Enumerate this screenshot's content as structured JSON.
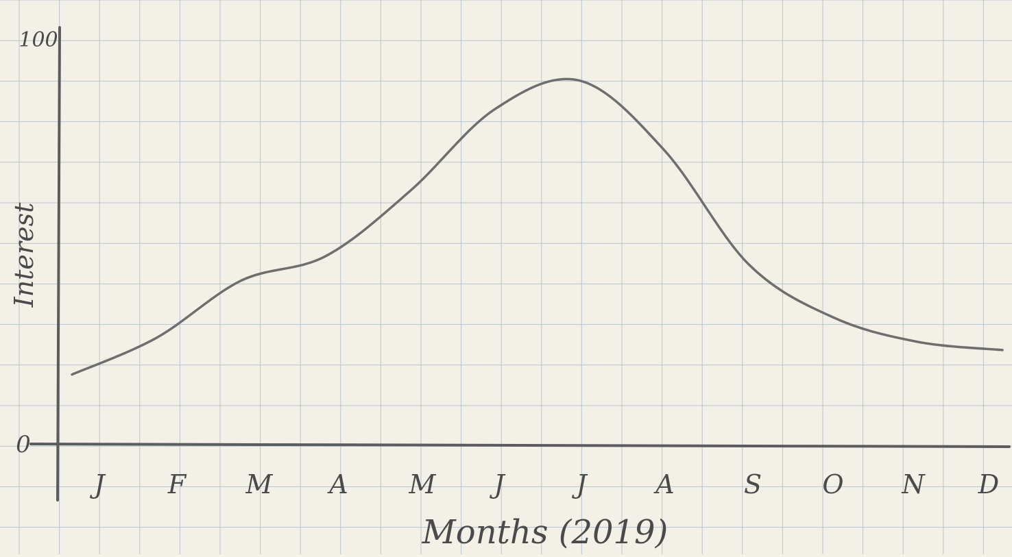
{
  "chart_data": {
    "type": "line",
    "title": "",
    "xlabel": "Months (2019)",
    "ylabel": "Interest",
    "ylim": [
      0,
      100
    ],
    "y_ticks": [
      "0",
      "100"
    ],
    "categories": [
      "J",
      "F",
      "M",
      "A",
      "M",
      "J",
      "J",
      "A",
      "S",
      "O",
      "N",
      "D"
    ],
    "series": [
      {
        "values": [
          17,
          26,
          40,
          46,
          62,
          82,
          89,
          72,
          44,
          31,
          25,
          23
        ]
      }
    ],
    "grid": true,
    "legend": "none",
    "colors": {
      "paper": "#f3f1e7",
      "grid": "#b9c3cc",
      "pencil": "#5c5c5c",
      "line": "#6e6e6e"
    }
  }
}
